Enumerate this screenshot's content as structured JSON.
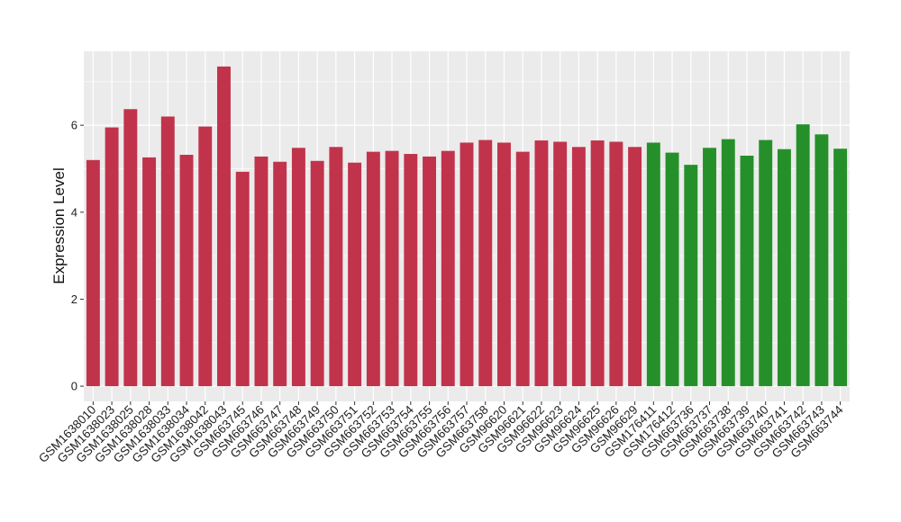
{
  "chart_data": {
    "type": "bar",
    "ylabel": "Expression Level",
    "xlabel": "",
    "title": "",
    "ylim": [
      -0.35,
      7.7
    ],
    "y_ticks": [
      0,
      2,
      4,
      6
    ],
    "grid": true,
    "categories": [
      "GSM1638010",
      "GSM1638023",
      "GSM1638025",
      "GSM1638028",
      "GSM1638033",
      "GSM1638034",
      "GSM1638042",
      "GSM1638043",
      "GSM663745",
      "GSM663746",
      "GSM663747",
      "GSM663748",
      "GSM663749",
      "GSM663750",
      "GSM663751",
      "GSM663752",
      "GSM663753",
      "GSM663754",
      "GSM663755",
      "GSM663756",
      "GSM663757",
      "GSM663758",
      "GSM96620",
      "GSM96621",
      "GSM96622",
      "GSM96623",
      "GSM96624",
      "GSM96625",
      "GSM96626",
      "GSM96629",
      "GSM176411",
      "GSM176412",
      "GSM663736",
      "GSM663737",
      "GSM663738",
      "GSM663739",
      "GSM663740",
      "GSM663741",
      "GSM663742",
      "GSM663743",
      "GSM663744"
    ],
    "values": [
      5.2,
      5.95,
      6.37,
      5.26,
      6.2,
      5.32,
      5.97,
      7.35,
      4.93,
      5.28,
      5.16,
      5.48,
      5.18,
      5.5,
      5.14,
      5.39,
      5.41,
      5.34,
      5.28,
      5.41,
      5.6,
      5.66,
      5.6,
      5.39,
      5.65,
      5.62,
      5.5,
      5.65,
      5.62,
      5.5,
      5.6,
      5.37,
      5.09,
      5.48,
      5.68,
      5.3,
      5.66,
      5.45,
      6.02,
      5.79,
      5.46
    ],
    "groups": [
      "red",
      "red",
      "red",
      "red",
      "red",
      "red",
      "red",
      "red",
      "red",
      "red",
      "red",
      "red",
      "red",
      "red",
      "red",
      "red",
      "red",
      "red",
      "red",
      "red",
      "red",
      "red",
      "red",
      "red",
      "red",
      "red",
      "red",
      "red",
      "red",
      "red",
      "green",
      "green",
      "green",
      "green",
      "green",
      "green",
      "green",
      "green",
      "green",
      "green",
      "green"
    ],
    "colors": {
      "red": "#c1334b",
      "green": "#25902a",
      "panel": "#ebebeb",
      "grid": "#ffffff"
    }
  }
}
